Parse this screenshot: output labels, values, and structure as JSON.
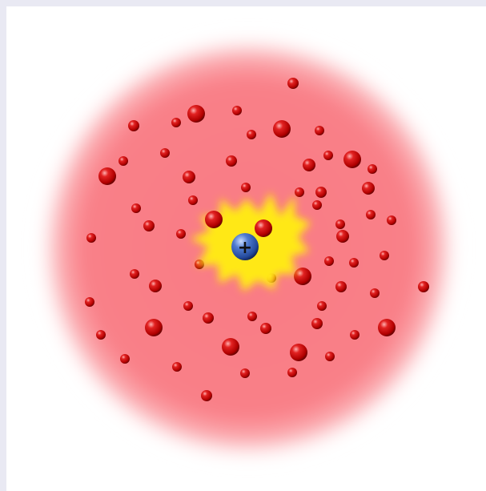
{
  "diagram": {
    "nucleus_label": "+",
    "colors": {
      "cloud": "#f97b84",
      "cloud_edge": "#ffffff",
      "glow": "#ffe818",
      "glow_edge": "#ff9a4a",
      "electron": "#d21212",
      "electron_highlight": "#ff8a8a",
      "electron_shadow": "#6a0000",
      "nucleus": "#3a64b8",
      "nucleus_highlight": "#9fc0ff",
      "nucleus_shadow": "#0e1e52"
    }
  }
}
